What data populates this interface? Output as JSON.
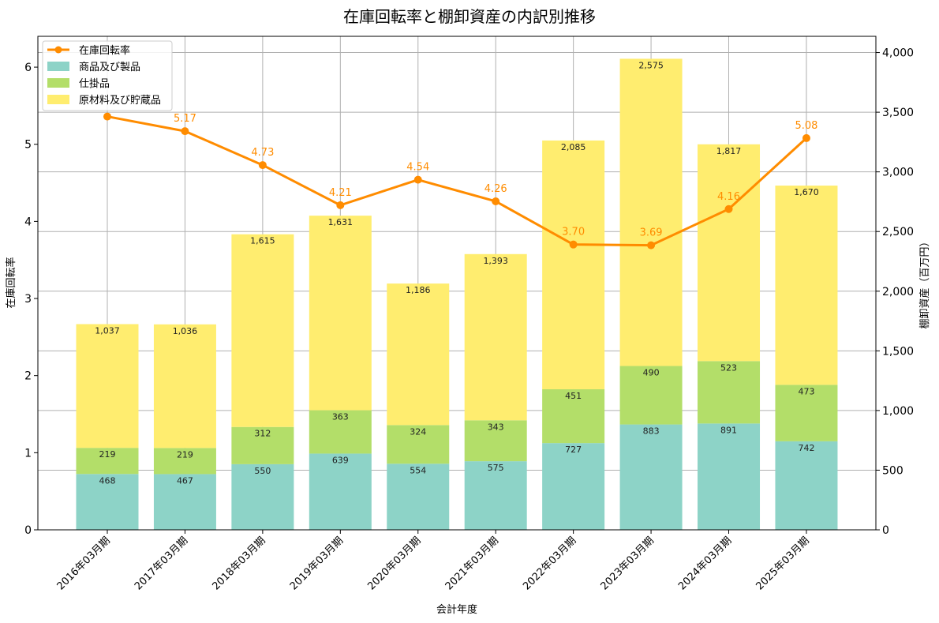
{
  "chart_data": {
    "type": "bar",
    "stacked": true,
    "title": "在庫回転率と棚卸資産の内訳別推移",
    "xlabel": "会計年度",
    "ylabel_left": "在庫回転率",
    "ylabel_right": "棚卸資産（百万円）",
    "categories": [
      "2016年03月期",
      "2017年03月期",
      "2018年03月期",
      "2019年03月期",
      "2020年03月期",
      "2021年03月期",
      "2022年03月期",
      "2023年03月期",
      "2024年03月期",
      "2025年03月期"
    ],
    "bar_series": [
      {
        "name": "商品及び製品",
        "color": "#8dd3c7",
        "values": [
          468,
          467,
          550,
          639,
          554,
          575,
          727,
          883,
          891,
          742
        ]
      },
      {
        "name": "仕掛品",
        "color": "#b3de69",
        "values": [
          219,
          219,
          312,
          363,
          324,
          343,
          451,
          490,
          523,
          473
        ]
      },
      {
        "name": "原材料及び貯蔵品",
        "color": "#ffed6f",
        "values": [
          1037,
          1036,
          1615,
          1631,
          1186,
          1393,
          2085,
          2575,
          1817,
          1670
        ]
      }
    ],
    "bar_value_labels": [
      [
        "468",
        "467",
        "550",
        "639",
        "554",
        "575",
        "727",
        "883",
        "891",
        "742"
      ],
      [
        "219",
        "219",
        "312",
        "363",
        "324",
        "343",
        "451",
        "490",
        "523",
        "473"
      ],
      [
        "1,037",
        "1,036",
        "1,615",
        "1,631",
        "1,186",
        "1,393",
        "2,085",
        "2,575",
        "1,817",
        "1,670"
      ]
    ],
    "line_series": {
      "name": "在庫回転率",
      "color": "#ff8c00",
      "values": [
        5.36,
        5.17,
        4.73,
        4.21,
        4.54,
        4.26,
        3.7,
        3.69,
        4.16,
        5.08
      ],
      "labels": [
        "",
        "5.17",
        "4.73",
        "4.21",
        "4.54",
        "4.26",
        "3.70",
        "3.69",
        "4.16",
        "5.08"
      ]
    },
    "ylim_left": [
      0,
      6.4
    ],
    "yticks_left": [
      0,
      1,
      2,
      3,
      4,
      5,
      6
    ],
    "yticklabels_left": [
      "0",
      "1",
      "2",
      "3",
      "4",
      "5",
      "6"
    ],
    "ylim_right": [
      0,
      4136
    ],
    "yticks_right": [
      0,
      500,
      1000,
      1500,
      2000,
      2500,
      3000,
      3500,
      4000
    ],
    "yticklabels_right": [
      "0",
      "500",
      "1,000",
      "1,500",
      "2,000",
      "2,500",
      "3,000",
      "3,500",
      "4,000"
    ],
    "grid": true,
    "legend_position": "top-left",
    "legend": [
      {
        "label": "在庫回転率",
        "kind": "line",
        "color": "#ff8c00"
      },
      {
        "label": "商品及び製品",
        "kind": "patch",
        "color": "#8dd3c7"
      },
      {
        "label": "仕掛品",
        "kind": "patch",
        "color": "#b3de69"
      },
      {
        "label": "原材料及び貯蔵品",
        "kind": "patch",
        "color": "#ffed6f"
      }
    ]
  }
}
